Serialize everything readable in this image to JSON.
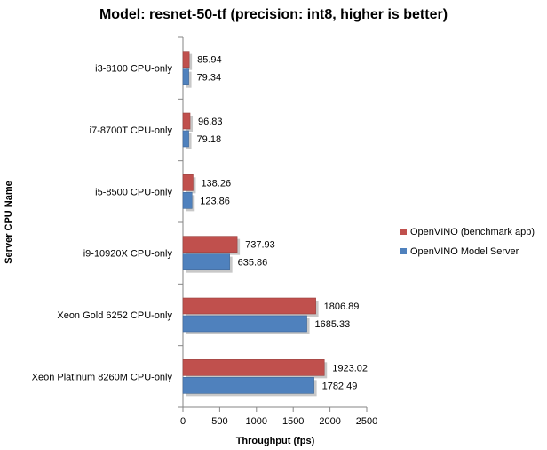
{
  "chart_data": {
    "type": "bar",
    "orientation": "horizontal",
    "title": "Model: resnet-50-tf (precision: int8, higher is better)",
    "xlabel": "Throughput (fps)",
    "ylabel": "Server CPU Name",
    "xlim": [
      0,
      2500
    ],
    "xticks": [
      0,
      500,
      1000,
      1500,
      2000,
      2500
    ],
    "grid": false,
    "legend_position": "right",
    "categories": [
      "i3-8100 CPU-only",
      "i7-8700T CPU-only",
      "i5-8500 CPU-only",
      "i9-10920X CPU-only",
      "Xeon Gold 6252 CPU-only",
      "Xeon Platinum 8260M CPU-only"
    ],
    "series": [
      {
        "name": "OpenVINO (benchmark app)",
        "color": "#c0504d",
        "values": [
          85.94,
          96.83,
          138.26,
          737.93,
          1806.89,
          1923.02
        ],
        "labels": [
          "85.94",
          "96.83",
          "138.26",
          "737.93",
          "1806.89",
          "1923.02"
        ]
      },
      {
        "name": "OpenVINO Model Server",
        "color": "#4f81bd",
        "values": [
          79.34,
          79.18,
          123.86,
          635.86,
          1685.33,
          1782.49
        ],
        "labels": [
          "79.34",
          "79.18",
          "123.86",
          "635.86",
          "1685.33",
          "1782.49"
        ]
      }
    ]
  }
}
